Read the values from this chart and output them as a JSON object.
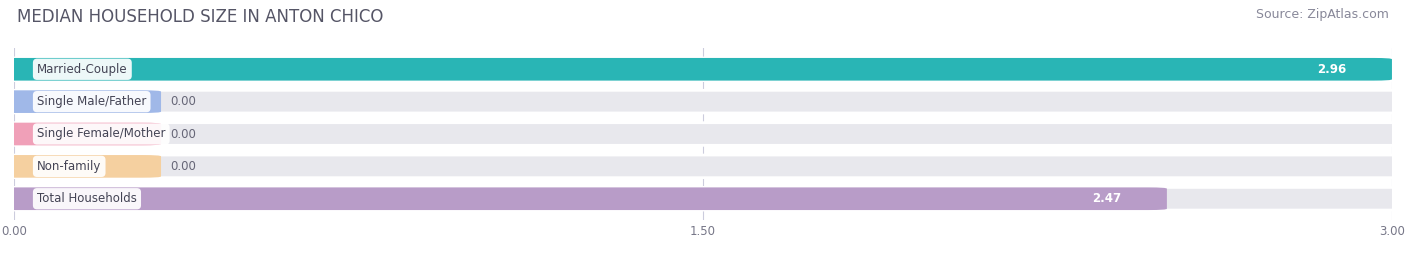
{
  "title": "MEDIAN HOUSEHOLD SIZE IN ANTON CHICO",
  "source": "Source: ZipAtlas.com",
  "categories": [
    "Married-Couple",
    "Single Male/Father",
    "Single Female/Mother",
    "Non-family",
    "Total Households"
  ],
  "values": [
    2.96,
    0.0,
    0.0,
    0.0,
    2.47
  ],
  "bar_colors": [
    "#29b5b5",
    "#a0b8e8",
    "#f0a0b8",
    "#f5d0a0",
    "#b89cc8"
  ],
  "value_labels": [
    "2.96",
    "0.00",
    "0.00",
    "0.00",
    "2.47"
  ],
  "xlim": [
    0,
    3.0
  ],
  "xticks": [
    0.0,
    1.5,
    3.0
  ],
  "xtick_labels": [
    "0.00",
    "1.50",
    "3.00"
  ],
  "background_color": "#ffffff",
  "bar_bg_color": "#e8e8ed",
  "bar_row_bg": "#f0f0f5",
  "title_fontsize": 12,
  "source_fontsize": 9,
  "bar_height": 0.62,
  "min_bar_width": 0.28,
  "figsize": [
    14.06,
    2.68
  ],
  "dpi": 100
}
